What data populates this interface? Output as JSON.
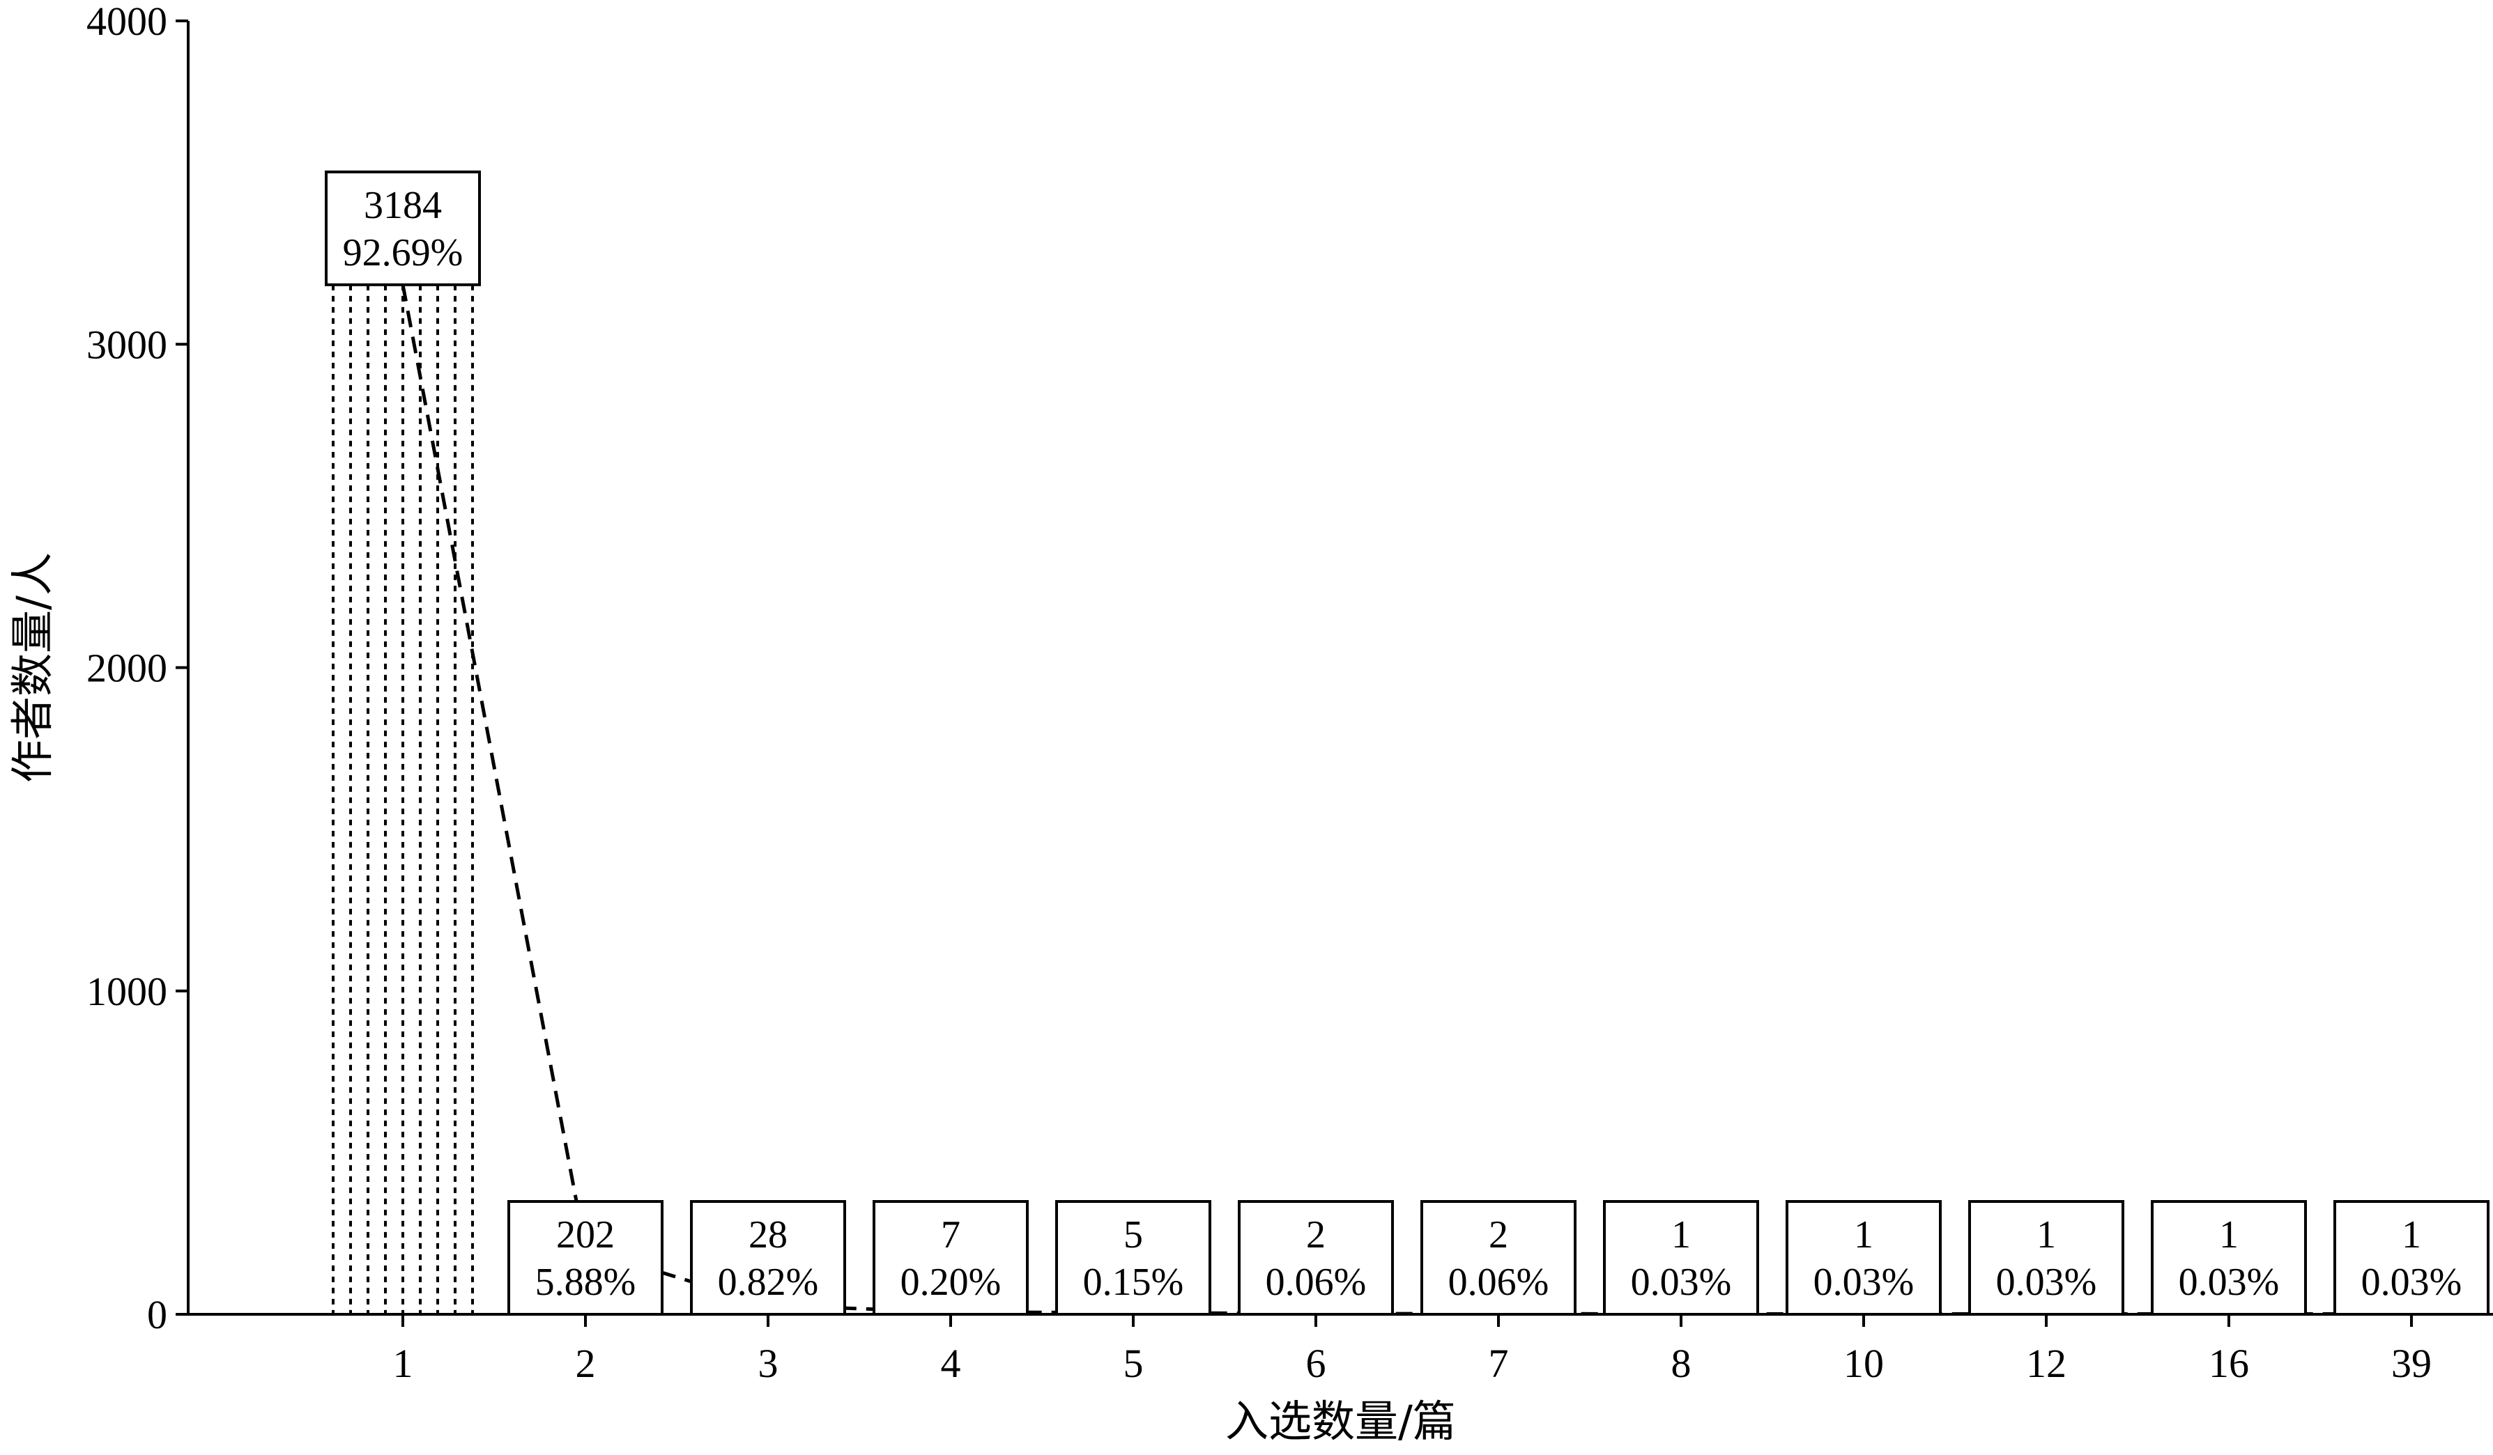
{
  "chart_data": {
    "type": "bar",
    "xlabel": "入选数量/篇",
    "ylabel": "作者数量/人",
    "ylim": [
      0,
      4000
    ],
    "yticks": [
      0,
      1000,
      2000,
      3000,
      4000
    ],
    "categories": [
      "1",
      "2",
      "3",
      "4",
      "5",
      "6",
      "7",
      "8",
      "10",
      "12",
      "16",
      "39"
    ],
    "values": [
      3184,
      202,
      28,
      7,
      5,
      2,
      2,
      1,
      1,
      1,
      1,
      1
    ],
    "percent_labels": [
      "92.69%",
      "5.88%",
      "0.82%",
      "0.20%",
      "0.15%",
      "0.06%",
      "0.06%",
      "0.03%",
      "0.03%",
      "0.03%",
      "0.03%",
      "0.03%"
    ],
    "bar_fill": "dotted vertical hatch",
    "line_style": "dashed trend line connecting bar values",
    "grid": false,
    "legend": "none",
    "colors": {
      "ink": "#000000",
      "background": "#ffffff"
    }
  }
}
